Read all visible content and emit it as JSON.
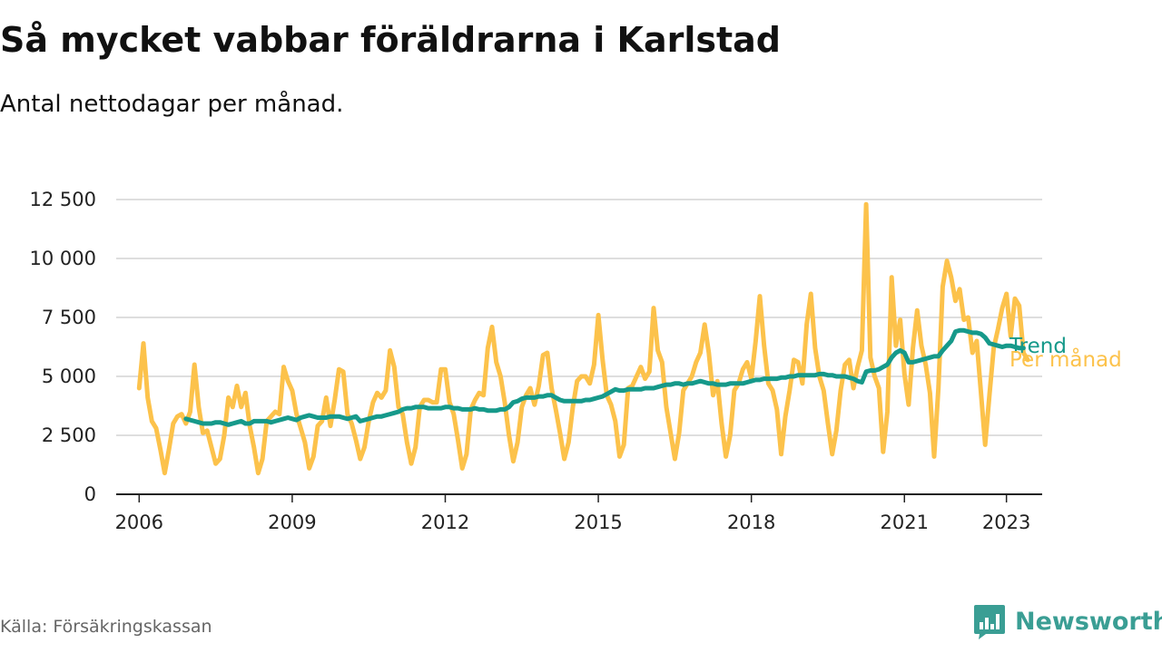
{
  "title": "Så mycket vabbar föräldrarna i Karlstad",
  "subtitle": "Antal nettodagar per månad.",
  "source": "Källa: Försäkringskassan",
  "brand": {
    "name": "Newsworthy",
    "icon": "newsworthy-logo-icon",
    "color": "#3a9e94"
  },
  "colors": {
    "monthly": "#fcc24b",
    "trend": "#16998a",
    "grid": "#d4d4d4",
    "axis": "#222222"
  },
  "chart_data": {
    "type": "line",
    "title": "Så mycket vabbar föräldrarna i Karlstad",
    "subtitle": "Antal nettodagar per månad.",
    "xlabel": "",
    "ylabel": "",
    "x_start": "2006-01",
    "xlim": [
      2005.55,
      2023.7
    ],
    "ylim": [
      0,
      12500
    ],
    "yticks": [
      0,
      2500,
      5000,
      7500,
      10000,
      12500
    ],
    "ytick_labels": [
      "0",
      "2 500",
      "5 000",
      "7 500",
      "10 000",
      "12 500"
    ],
    "xticks": [
      2006,
      2009,
      2012,
      2015,
      2018,
      2021,
      2023
    ],
    "xtick_labels": [
      "2006",
      "2009",
      "2012",
      "2015",
      "2018",
      "2021",
      "2023"
    ],
    "grid": "horizontal",
    "legend": "direct labels at line ends",
    "series": [
      {
        "name": "Per månad",
        "values": [
          4500,
          6400,
          4100,
          3100,
          2800,
          1900,
          900,
          1900,
          3000,
          3300,
          3400,
          3000,
          3500,
          5500,
          3700,
          2600,
          2700,
          2000,
          1300,
          1500,
          2500,
          4100,
          3700,
          4600,
          3700,
          4300,
          2900,
          2000,
          900,
          1500,
          3100,
          3300,
          3500,
          3400,
          5400,
          4800,
          4400,
          3400,
          2800,
          2200,
          1100,
          1600,
          2900,
          3100,
          4100,
          2900,
          4000,
          5300,
          5200,
          3400,
          3000,
          2300,
          1500,
          2000,
          3100,
          3900,
          4300,
          4100,
          4400,
          6100,
          5400,
          3700,
          3400,
          2200,
          1300,
          2000,
          3700,
          4000,
          4000,
          3900,
          3900,
          5300,
          5300,
          3900,
          3400,
          2300,
          1100,
          1700,
          3600,
          4000,
          4300,
          4200,
          6200,
          7100,
          5600,
          5000,
          3900,
          2500,
          1400,
          2200,
          3700,
          4200,
          4500,
          3800,
          4600,
          5900,
          6000,
          4500,
          3600,
          2600,
          1500,
          2200,
          3700,
          4800,
          5000,
          5000,
          4700,
          5500,
          7600,
          5700,
          4200,
          3800,
          3100,
          1600,
          2100,
          4500,
          4600,
          5000,
          5400,
          4900,
          5200,
          7900,
          6100,
          5600,
          3700,
          2600,
          1500,
          2600,
          4400,
          4700,
          5000,
          5600,
          6000,
          7200,
          6000,
          4200,
          4800,
          3000,
          1600,
          2500,
          4400,
          4700,
          5300,
          5600,
          4900,
          6500,
          8400,
          6300,
          4700,
          4400,
          3600,
          1700,
          3300,
          4400,
          5700,
          5600,
          4700,
          7200,
          8500,
          6200,
          5000,
          4400,
          3000,
          1700,
          2700,
          4400,
          5500,
          5700,
          4500,
          5400,
          6100,
          12300,
          5800,
          5000,
          4500,
          1800,
          3500,
          9200,
          6300,
          7400,
          5100,
          3800,
          6200,
          7800,
          6300,
          5500,
          4300,
          1600,
          4500,
          8800,
          9900,
          9200,
          8200,
          8700,
          7400,
          7500,
          6000,
          6500,
          4300,
          2100,
          4200,
          6200,
          7000,
          7900,
          8500,
          6700,
          8300,
          8000,
          6000,
          5700
        ]
      },
      {
        "name": "Trend",
        "values": [
          3200,
          3150,
          3100,
          3050,
          3000,
          3000,
          3000,
          3050,
          3050,
          3000,
          2950,
          3000,
          3050,
          3100,
          3000,
          3000,
          3100,
          3100,
          3100,
          3100,
          3050,
          3100,
          3150,
          3200,
          3250,
          3200,
          3150,
          3250,
          3300,
          3350,
          3300,
          3250,
          3250,
          3250,
          3300,
          3300,
          3300,
          3250,
          3200,
          3250,
          3300,
          3100,
          3150,
          3200,
          3250,
          3300,
          3300,
          3350,
          3400,
          3450,
          3500,
          3600,
          3650,
          3650,
          3700,
          3700,
          3700,
          3650,
          3650,
          3650,
          3650,
          3700,
          3700,
          3650,
          3650,
          3600,
          3600,
          3600,
          3650,
          3600,
          3600,
          3550,
          3550,
          3550,
          3600,
          3600,
          3700,
          3900,
          3950,
          4050,
          4100,
          4100,
          4100,
          4150,
          4150,
          4200,
          4200,
          4100,
          4000,
          3950,
          3950,
          3950,
          3950,
          3950,
          4000,
          4000,
          4050,
          4100,
          4150,
          4250,
          4350,
          4450,
          4400,
          4400,
          4450,
          4450,
          4450,
          4450,
          4500,
          4500,
          4500,
          4550,
          4600,
          4650,
          4650,
          4700,
          4700,
          4650,
          4700,
          4700,
          4750,
          4800,
          4750,
          4700,
          4700,
          4650,
          4650,
          4650,
          4700,
          4700,
          4700,
          4700,
          4750,
          4800,
          4850,
          4850,
          4900,
          4900,
          4900,
          4900,
          4950,
          4950,
          5000,
          5000,
          5050,
          5050,
          5050,
          5050,
          5050,
          5100,
          5100,
          5050,
          5050,
          5000,
          5000,
          5000,
          4950,
          4900,
          4800,
          4750,
          5200,
          5250,
          5250,
          5300,
          5400,
          5500,
          5800,
          6000,
          6100,
          6000,
          5600,
          5600,
          5650,
          5700,
          5750,
          5800,
          5850,
          5850,
          6100,
          6300,
          6500,
          6900,
          6950,
          6950,
          6900,
          6850,
          6850,
          6800,
          6650,
          6400,
          6350,
          6300,
          6250,
          6300,
          6300,
          6250,
          6200,
          6200
        ]
      }
    ]
  }
}
